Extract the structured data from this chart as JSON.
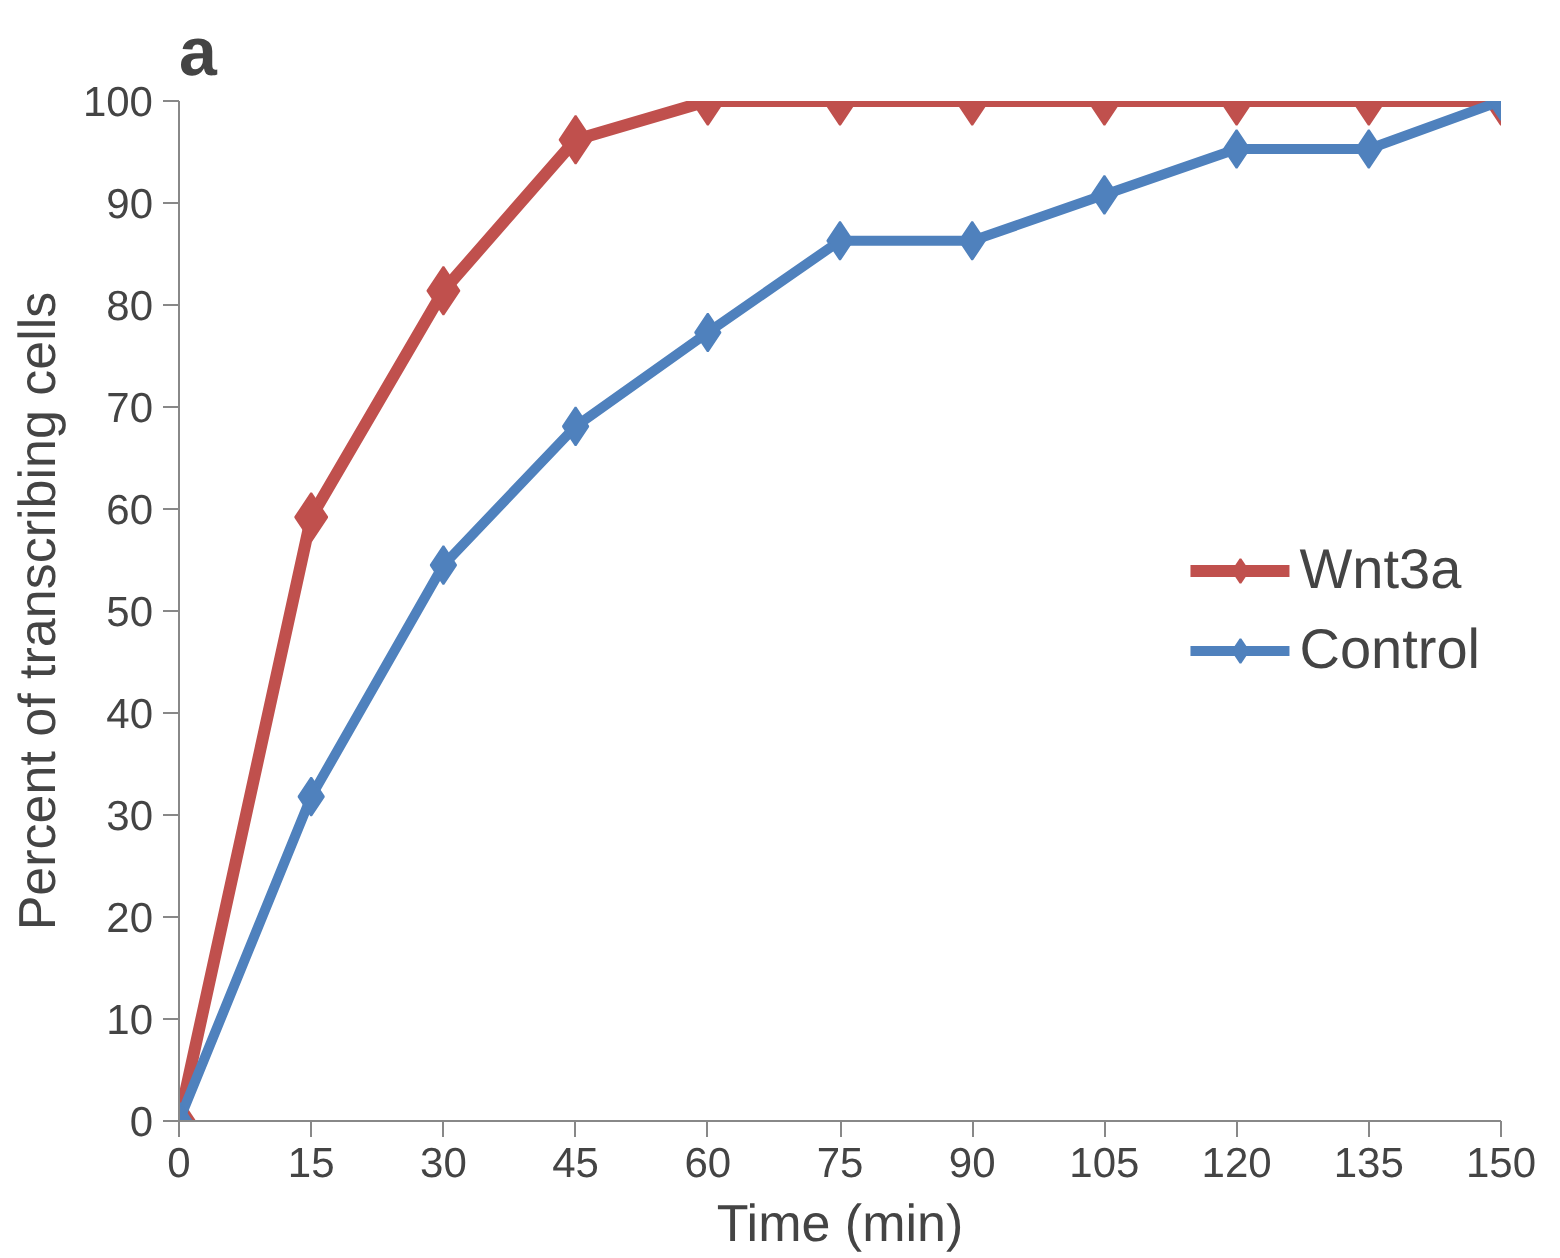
{
  "chart_data": {
    "type": "line",
    "title": "a",
    "xlabel": "Time (min)",
    "ylabel": "Percent of transcribing cells",
    "x": [
      0,
      15,
      30,
      45,
      60,
      75,
      90,
      105,
      120,
      135,
      150
    ],
    "series": [
      {
        "name": "Wnt3a",
        "color": "#c0504d",
        "values": [
          0,
          59.2,
          81.4,
          96.2,
          100,
          100,
          100,
          100,
          100,
          100,
          100
        ]
      },
      {
        "name": "Control",
        "color": "#4f81bd",
        "values": [
          0,
          31.8,
          54.5,
          68.1,
          77.3,
          86.3,
          86.3,
          90.8,
          95.3,
          95.3,
          100
        ]
      }
    ],
    "xlim": [
      0,
      150
    ],
    "xticks": [
      0,
      15,
      30,
      45,
      60,
      75,
      90,
      105,
      120,
      135,
      150
    ],
    "ylim": [
      0,
      100
    ],
    "yticks": [
      0,
      10,
      20,
      30,
      40,
      50,
      60,
      70,
      80,
      90,
      100
    ],
    "grid": false,
    "legend": "right",
    "marker": "diamond",
    "line_style": "solid"
  }
}
